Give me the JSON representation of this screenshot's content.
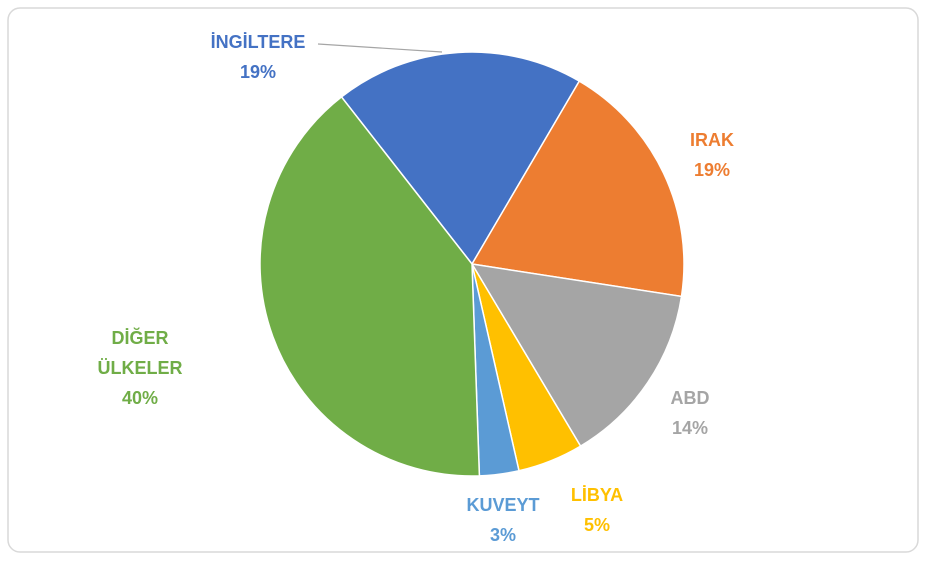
{
  "chart_data": {
    "type": "pie",
    "categories": [
      "İNGİLTERE",
      "IRAK",
      "ABD",
      "LİBYA",
      "KUVEYT",
      "DİĞER ÜLKELER"
    ],
    "values": [
      19,
      19,
      14,
      5,
      3,
      40
    ],
    "value_labels": [
      "19%",
      "19%",
      "14%",
      "5%",
      "3%",
      "40%"
    ],
    "colors": [
      "#4472c4",
      "#ed7d31",
      "#a5a5a5",
      "#ffc000",
      "#5b9bd5",
      "#70ad47"
    ]
  }
}
